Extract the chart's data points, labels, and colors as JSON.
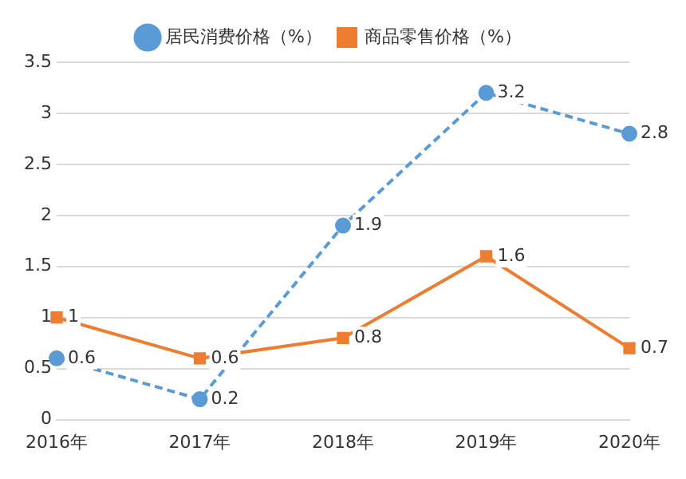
{
  "chart_data": {
    "type": "line",
    "categories": [
      "2016年",
      "2017年",
      "2018年",
      "2019年",
      "2020年"
    ],
    "series": [
      {
        "name": "居民消费价格（%）",
        "color": "#5b9bd5",
        "values": [
          0.6,
          0.2,
          1.9,
          3.2,
          2.8
        ],
        "marker": "circle",
        "line_style": "dashed"
      },
      {
        "name": "商品零售价格（%）",
        "color": "#ed7d31",
        "values": [
          1,
          0.6,
          0.8,
          1.6,
          0.7
        ],
        "marker": "square",
        "line_style": "solid"
      }
    ],
    "ylim": [
      0,
      3.5
    ],
    "yticks": [
      0,
      0.5,
      1,
      1.5,
      2,
      2.5,
      3,
      3.5
    ],
    "grid": "y",
    "legend": "top",
    "data_labels": true
  }
}
